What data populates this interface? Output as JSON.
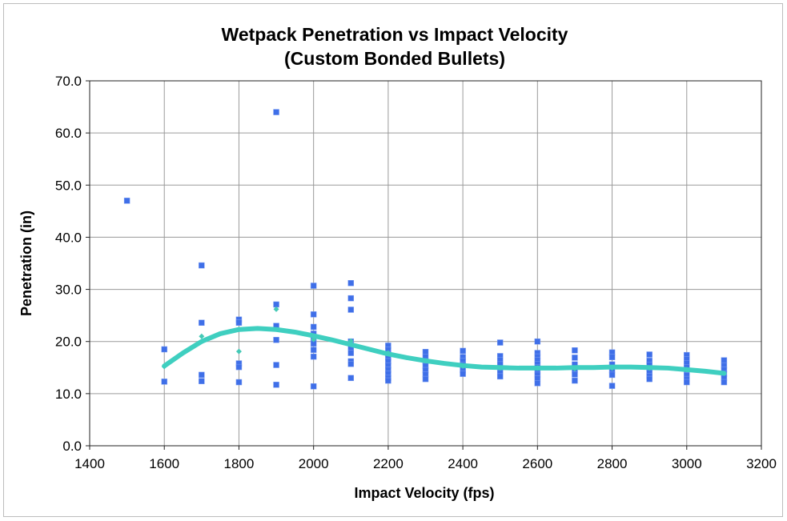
{
  "chart_data": {
    "type": "scatter",
    "title": "Wetpack Penetration vs Impact Velocity",
    "subtitle": "(Custom Bonded Bullets)",
    "xlabel": "Impact Velocity (fps)",
    "ylabel": "Penetration (in)",
    "xlim": [
      1400,
      3200
    ],
    "ylim": [
      0,
      70
    ],
    "xticks": [
      "1400",
      "1600",
      "1800",
      "2000",
      "2200",
      "2400",
      "2600",
      "2800",
      "3000",
      "3200"
    ],
    "yticks": [
      "0.0",
      "10.0",
      "20.0",
      "30.0",
      "40.0",
      "50.0",
      "60.0",
      "70.0"
    ],
    "grid": true,
    "legend": "none",
    "series": [
      {
        "marker": "square",
        "color": "#3f6fe8",
        "points": [
          [
            1500,
            47.0
          ],
          [
            1600,
            18.5
          ],
          [
            1600,
            12.3
          ],
          [
            1700,
            34.6
          ],
          [
            1700,
            23.6
          ],
          [
            1700,
            13.6
          ],
          [
            1700,
            12.4
          ],
          [
            1800,
            24.2
          ],
          [
            1800,
            23.6
          ],
          [
            1800,
            15.8
          ],
          [
            1800,
            15.1
          ],
          [
            1800,
            12.2
          ],
          [
            1900,
            64.0
          ],
          [
            1900,
            27.1
          ],
          [
            1900,
            23.0
          ],
          [
            1900,
            20.3
          ],
          [
            1900,
            15.5
          ],
          [
            1900,
            11.7
          ],
          [
            2000,
            30.7
          ],
          [
            2000,
            25.2
          ],
          [
            2000,
            22.8
          ],
          [
            2000,
            21.5
          ],
          [
            2000,
            20.5
          ],
          [
            2000,
            19.6
          ],
          [
            2000,
            18.4
          ],
          [
            2000,
            17.1
          ],
          [
            2000,
            11.4
          ],
          [
            2100,
            31.2
          ],
          [
            2100,
            28.3
          ],
          [
            2100,
            26.1
          ],
          [
            2100,
            20.0
          ],
          [
            2100,
            19.3
          ],
          [
            2100,
            18.7
          ],
          [
            2100,
            17.8
          ],
          [
            2100,
            16.2
          ],
          [
            2100,
            15.7
          ],
          [
            2100,
            13.0
          ],
          [
            2200,
            19.2
          ],
          [
            2200,
            18.4
          ],
          [
            2200,
            17.6
          ],
          [
            2200,
            16.9
          ],
          [
            2200,
            16.2
          ],
          [
            2200,
            15.4
          ],
          [
            2200,
            14.6
          ],
          [
            2200,
            13.8
          ],
          [
            2200,
            13.0
          ],
          [
            2200,
            12.5
          ],
          [
            2300,
            18.0
          ],
          [
            2300,
            17.0
          ],
          [
            2300,
            16.2
          ],
          [
            2300,
            15.3
          ],
          [
            2300,
            14.5
          ],
          [
            2300,
            13.7
          ],
          [
            2300,
            12.8
          ],
          [
            2400,
            18.2
          ],
          [
            2400,
            17.0
          ],
          [
            2400,
            16.3
          ],
          [
            2400,
            15.5
          ],
          [
            2400,
            14.5
          ],
          [
            2400,
            13.8
          ],
          [
            2500,
            19.8
          ],
          [
            2500,
            17.2
          ],
          [
            2500,
            16.4
          ],
          [
            2500,
            15.6
          ],
          [
            2500,
            14.8
          ],
          [
            2500,
            14.0
          ],
          [
            2500,
            13.3
          ],
          [
            2600,
            20.0
          ],
          [
            2600,
            17.8
          ],
          [
            2600,
            17.1
          ],
          [
            2600,
            16.4
          ],
          [
            2600,
            15.7
          ],
          [
            2600,
            15.0
          ],
          [
            2600,
            14.3
          ],
          [
            2600,
            13.6
          ],
          [
            2600,
            12.9
          ],
          [
            2600,
            12.0
          ],
          [
            2700,
            18.3
          ],
          [
            2700,
            16.9
          ],
          [
            2700,
            15.6
          ],
          [
            2700,
            14.6
          ],
          [
            2700,
            13.7
          ],
          [
            2700,
            12.5
          ],
          [
            2800,
            17.9
          ],
          [
            2800,
            17.0
          ],
          [
            2800,
            15.6
          ],
          [
            2800,
            14.5
          ],
          [
            2800,
            13.6
          ],
          [
            2800,
            11.5
          ],
          [
            2900,
            17.5
          ],
          [
            2900,
            16.3
          ],
          [
            2900,
            15.5
          ],
          [
            2900,
            14.8
          ],
          [
            2900,
            14.0
          ],
          [
            2900,
            13.4
          ],
          [
            2900,
            12.8
          ],
          [
            3000,
            17.4
          ],
          [
            3000,
            16.6
          ],
          [
            3000,
            15.8
          ],
          [
            3000,
            15.0
          ],
          [
            3000,
            14.2
          ],
          [
            3000,
            13.5
          ],
          [
            3000,
            12.8
          ],
          [
            3000,
            12.2
          ],
          [
            3100,
            16.4
          ],
          [
            3100,
            15.4
          ],
          [
            3100,
            14.6
          ],
          [
            3100,
            13.8
          ],
          [
            3100,
            13.0
          ],
          [
            3100,
            12.2
          ]
        ]
      },
      {
        "marker": "diamond",
        "color": "#44c9b6",
        "points": [
          [
            1600,
            15.2
          ],
          [
            1700,
            21.0
          ],
          [
            1800,
            18.1
          ],
          [
            1900,
            26.2
          ],
          [
            2000,
            20.4
          ],
          [
            2100,
            20.1
          ],
          [
            2200,
            17.8
          ],
          [
            2300,
            16.3
          ],
          [
            2400,
            15.3
          ],
          [
            2500,
            14.9
          ],
          [
            2600,
            14.9
          ],
          [
            2700,
            14.8
          ],
          [
            2800,
            14.9
          ],
          [
            2900,
            14.9
          ],
          [
            3000,
            14.6
          ],
          [
            3100,
            13.9
          ]
        ]
      }
    ],
    "trendline": {
      "type": "polynomial",
      "color": "#3fcfc0",
      "points": [
        [
          1600,
          15.3
        ],
        [
          1650,
          17.8
        ],
        [
          1700,
          20.0
        ],
        [
          1750,
          21.5
        ],
        [
          1800,
          22.3
        ],
        [
          1850,
          22.5
        ],
        [
          1900,
          22.3
        ],
        [
          1950,
          21.8
        ],
        [
          2000,
          21.1
        ],
        [
          2050,
          20.3
        ],
        [
          2100,
          19.4
        ],
        [
          2150,
          18.5
        ],
        [
          2200,
          17.6
        ],
        [
          2250,
          16.9
        ],
        [
          2300,
          16.3
        ],
        [
          2350,
          15.8
        ],
        [
          2400,
          15.4
        ],
        [
          2450,
          15.1
        ],
        [
          2500,
          15.0
        ],
        [
          2550,
          14.9
        ],
        [
          2600,
          14.9
        ],
        [
          2650,
          14.9
        ],
        [
          2700,
          15.0
        ],
        [
          2750,
          15.0
        ],
        [
          2800,
          15.1
        ],
        [
          2850,
          15.1
        ],
        [
          2900,
          15.0
        ],
        [
          2950,
          14.9
        ],
        [
          3000,
          14.6
        ],
        [
          3050,
          14.3
        ],
        [
          3100,
          13.9
        ]
      ]
    }
  }
}
